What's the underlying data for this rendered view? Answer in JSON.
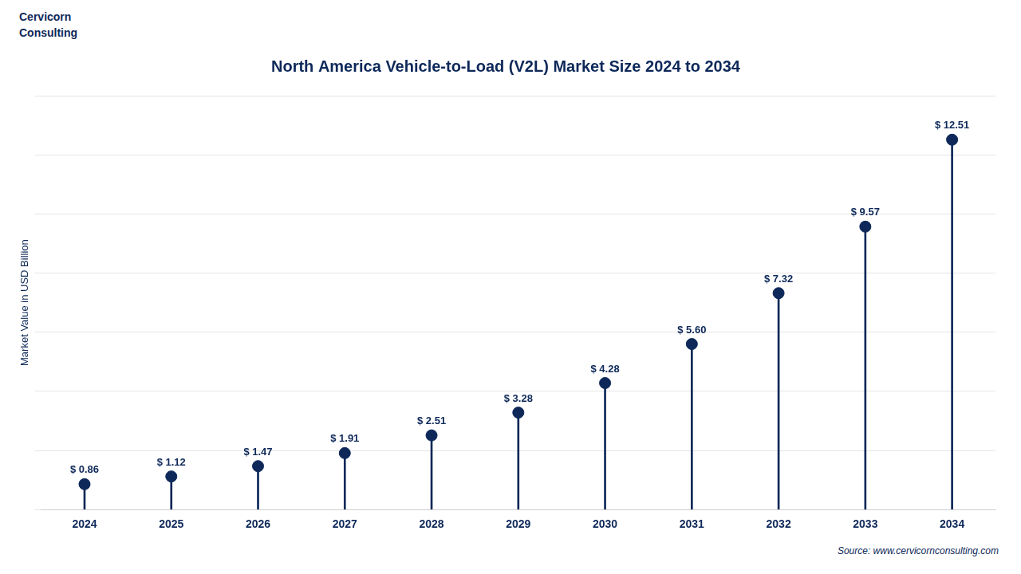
{
  "chart_data": {
    "type": "lollipop",
    "title": "North America Vehicle-to-Load (V2L) Market Size 2024 to 2034",
    "ylabel": "Market Value in USD Billion",
    "categories": [
      "2024",
      "2025",
      "2026",
      "2027",
      "2028",
      "2029",
      "2030",
      "2031",
      "2032",
      "2033",
      "2034"
    ],
    "values": [
      0.86,
      1.12,
      1.47,
      1.91,
      2.51,
      3.28,
      4.28,
      5.6,
      7.32,
      9.57,
      12.51
    ],
    "value_labels": [
      "$ 0.86",
      "$ 1.12",
      "$ 1.47",
      "$ 1.91",
      "$ 2.51",
      "$ 3.28",
      "$ 4.28",
      "$ 5.60",
      "$ 7.32",
      "$ 9.57",
      "$ 12.51"
    ],
    "data_labels": true,
    "color": "#0d2859",
    "ylim": [
      0,
      14
    ],
    "yticks": [
      0,
      2,
      4,
      6,
      8,
      10,
      12,
      14
    ],
    "grid": true,
    "tick_labels": "x",
    "annotations": [
      "Cervicorn\nConsulting",
      "Source: www.cervicornconsulting.com"
    ]
  }
}
